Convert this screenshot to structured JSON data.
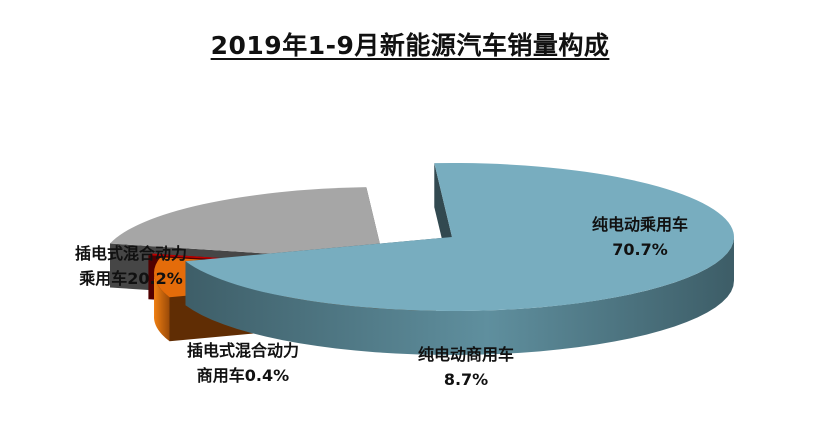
{
  "chart_data": {
    "type": "pie",
    "title": "2019年1-9月新能源汽车销量构成",
    "slices": [
      {
        "name": "纯电动乘用车",
        "value": 70.7,
        "value_label": "70.7%",
        "color": "#78adbf"
      },
      {
        "name": "纯电动商用车",
        "value": 8.7,
        "value_label": "8.7%",
        "color": "#e46c0a"
      },
      {
        "name": "插电式混合动力商用车",
        "name_lines": [
          "插电式混合动力",
          "商用车0.4%"
        ],
        "value": 0.4,
        "value_label": "0.4%",
        "color": "#c00000"
      },
      {
        "name": "插电式混合动力乘用车",
        "name_lines": [
          "插电式混合动力",
          "乘用车20.2%"
        ],
        "value": 20.2,
        "value_label": "20.2%",
        "color": "#a6a6a6"
      }
    ],
    "style": "3d-exploded",
    "legend": "none"
  }
}
